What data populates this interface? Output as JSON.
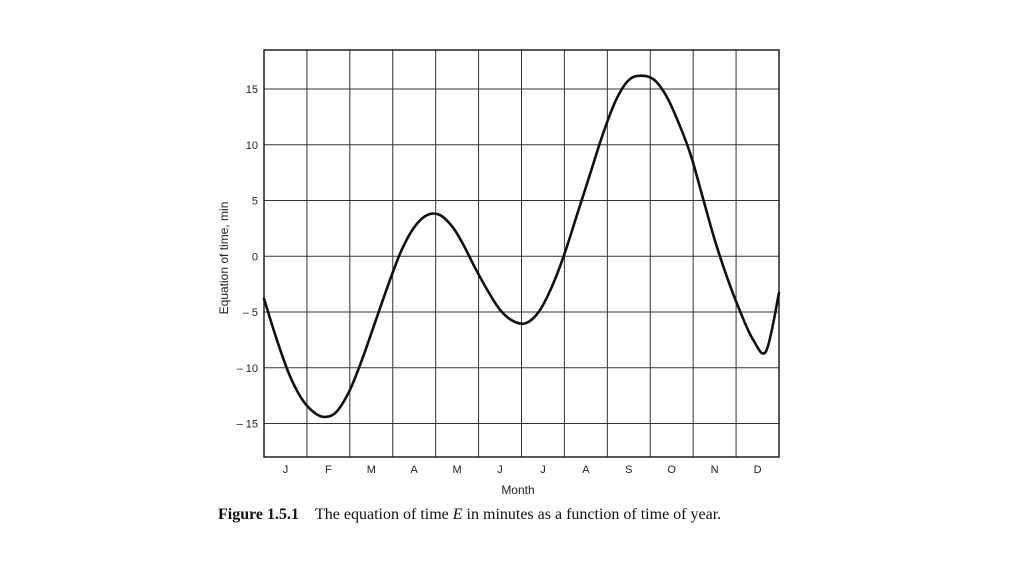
{
  "chart_data": {
    "type": "line",
    "xlabel": "Month",
    "ylabel": "Equation of time, min",
    "categories": [
      "J",
      "F",
      "M",
      "A",
      "M",
      "J",
      "J",
      "A",
      "S",
      "O",
      "N",
      "D"
    ],
    "x_unit": "month index (0 = start of year, 12 = end of year)",
    "xlim": [
      0,
      12
    ],
    "ylim": [
      -18,
      18.5
    ],
    "yticks": [
      15,
      10,
      5,
      0,
      -5,
      -10,
      -15
    ],
    "ytick_labels": [
      "15",
      "10",
      "5",
      "0",
      "– 5",
      "– 10",
      "– 15"
    ],
    "grid": true,
    "series": [
      {
        "x": [
          0,
          0.3,
          0.6,
          0.9,
          1.2,
          1.45,
          1.7,
          2.0,
          2.3,
          2.6,
          2.9,
          3.2,
          3.5,
          3.8,
          4.1,
          4.4,
          4.65,
          4.9,
          5.2,
          5.5,
          5.8,
          6.1,
          6.4,
          6.7,
          7.0,
          7.3,
          7.6,
          7.9,
          8.2,
          8.5,
          8.8,
          9.1,
          9.4,
          9.7,
          9.95,
          10.2,
          10.5,
          10.8,
          11.1,
          11.4,
          11.7,
          12.0
        ],
        "y": [
          -3.8,
          -7.5,
          -10.7,
          -12.9,
          -14.1,
          -14.4,
          -13.9,
          -12.0,
          -9.1,
          -5.8,
          -2.5,
          0.5,
          2.6,
          3.7,
          3.7,
          2.6,
          1.0,
          -0.9,
          -3.0,
          -4.8,
          -5.8,
          -6.0,
          -5.0,
          -2.8,
          0.2,
          3.8,
          7.4,
          11.0,
          14.0,
          15.8,
          16.2,
          15.8,
          14.2,
          11.6,
          9.0,
          5.6,
          1.5,
          -2.0,
          -5.0,
          -7.5,
          -8.5,
          -3.3
        ]
      }
    ]
  },
  "caption": {
    "figure_label": "Figure 1.5.1",
    "text_prefix": "The equation of time ",
    "text_variable": "E",
    "text_suffix": " in minutes as a function of time of year."
  }
}
